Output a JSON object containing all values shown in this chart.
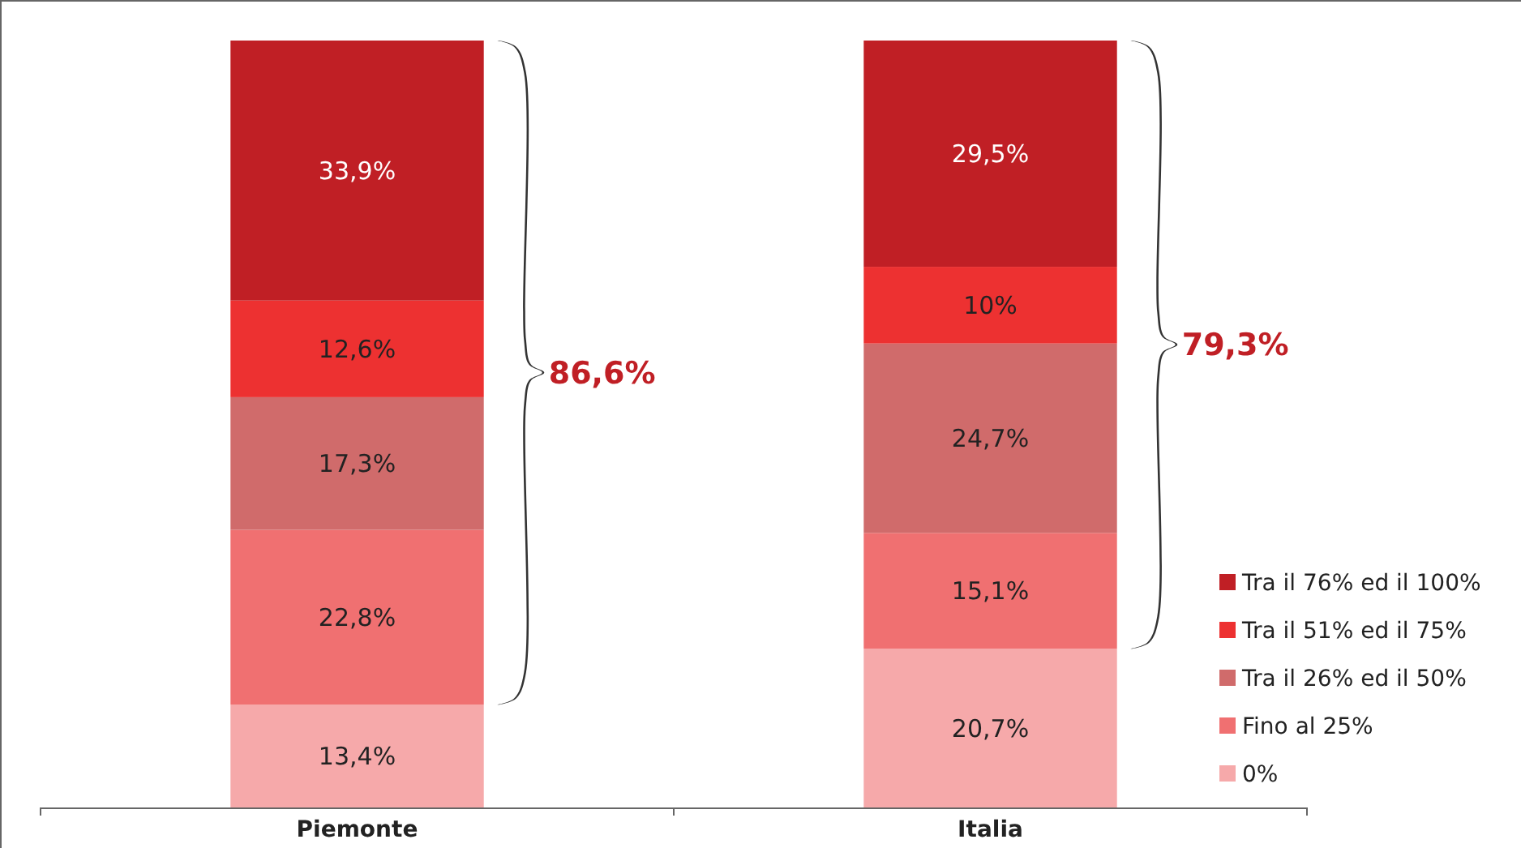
{
  "chart_data": {
    "type": "bar",
    "stacked": true,
    "categories": [
      "Piemonte",
      "Italia"
    ],
    "legend": "bottom right",
    "series": [
      {
        "name": "0%",
        "color": "#f6a9aa",
        "values": [
          13.4,
          20.7
        ],
        "value_labels": [
          "13,4%",
          "20,7%"
        ]
      },
      {
        "name": "Fino al 25%",
        "color": "#f07071",
        "values": [
          22.8,
          15.1
        ],
        "value_labels": [
          "22,8%",
          "15,1%"
        ]
      },
      {
        "name": "Tra il 26% ed il 50%",
        "color": "#d06b6b",
        "values": [
          17.3,
          24.7
        ],
        "value_labels": [
          "17,3%",
          "24,7%"
        ]
      },
      {
        "name": "Tra il 51% ed il 75%",
        "color": "#ed3131",
        "values": [
          12.6,
          10
        ],
        "value_labels": [
          "12,6%",
          "10%"
        ]
      },
      {
        "name": "Tra il 76% ed il 100%",
        "color": "#c01f25",
        "values": [
          33.9,
          29.5
        ],
        "value_labels": [
          "33,9%",
          "29,5%"
        ]
      }
    ],
    "annotations": [
      "86,6%",
      "79,3%"
    ]
  }
}
